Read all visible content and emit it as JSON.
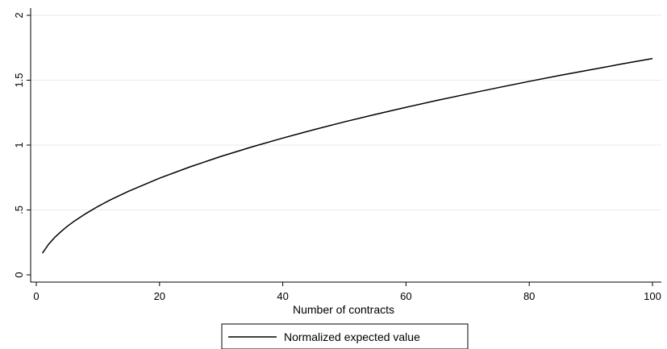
{
  "chart_data": {
    "type": "line",
    "title": "",
    "xlabel": "Number of contracts",
    "ylabel": "",
    "xlim": [
      0,
      100
    ],
    "ylim": [
      0,
      2
    ],
    "x_ticks": [
      0,
      20,
      40,
      60,
      80,
      100
    ],
    "x_tick_labels": [
      "0",
      "20",
      "40",
      "60",
      "80",
      "100"
    ],
    "y_ticks": [
      0,
      0.5,
      1,
      1.5,
      2
    ],
    "y_tick_labels": [
      "0",
      ".5",
      "1",
      "1.5",
      "2"
    ],
    "grid": true,
    "legend_position": "bottom",
    "series": [
      {
        "name": "Normalized expected value",
        "color": "#000000",
        "x": [
          1,
          2,
          3,
          4,
          5,
          6,
          8,
          10,
          12,
          15,
          20,
          25,
          30,
          35,
          40,
          45,
          50,
          55,
          60,
          65,
          70,
          75,
          80,
          85,
          90,
          95,
          100
        ],
        "y": [
          0.167,
          0.236,
          0.289,
          0.333,
          0.373,
          0.408,
          0.471,
          0.527,
          0.577,
          0.645,
          0.745,
          0.833,
          0.913,
          0.986,
          1.054,
          1.118,
          1.179,
          1.236,
          1.291,
          1.344,
          1.394,
          1.443,
          1.491,
          1.537,
          1.581,
          1.625,
          1.667
        ]
      }
    ]
  }
}
